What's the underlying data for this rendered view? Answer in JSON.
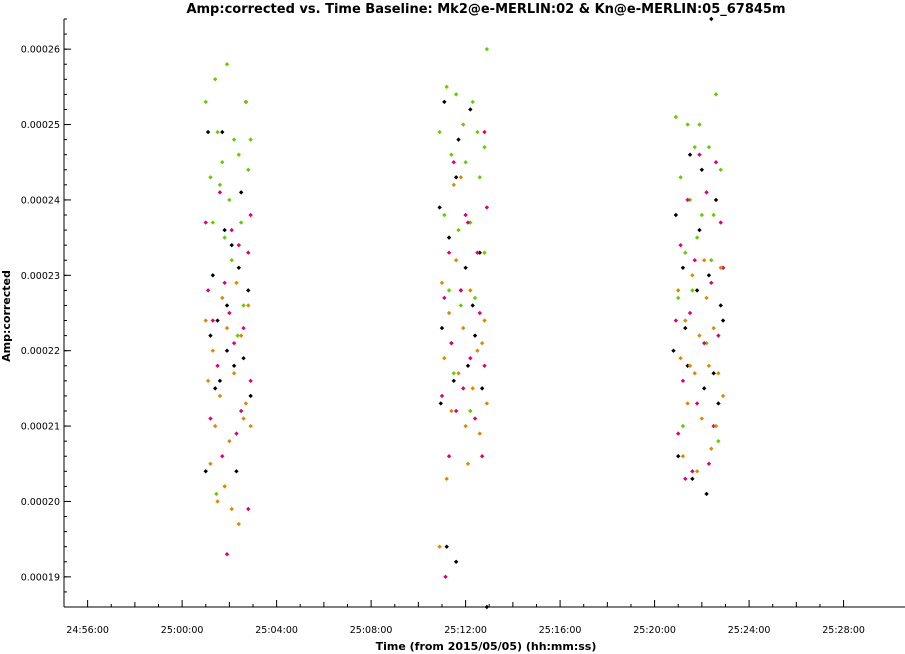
{
  "chart_data": {
    "type": "scatter",
    "title": "Amp:corrected vs. Time Baseline: Mk2@e-MERLIN:02 & Kn@e-MERLIN:05_67845m",
    "xlabel": "Time (from 2015/05/05) (hh:mm:ss)",
    "ylabel": "Amp:corrected",
    "x_unit": "minutes",
    "xlim": [
      1495.0,
      1530.6
    ],
    "ylim": [
      0.000186,
      0.000264
    ],
    "x_ticks": [
      {
        "value": 1496,
        "label": "24:56:00"
      },
      {
        "value": 1500,
        "label": "25:00:00"
      },
      {
        "value": 1504,
        "label": "25:04:00"
      },
      {
        "value": 1508,
        "label": "25:08:00"
      },
      {
        "value": 1512,
        "label": "25:12:00"
      },
      {
        "value": 1516,
        "label": "25:16:00"
      },
      {
        "value": 1520,
        "label": "25:20:00"
      },
      {
        "value": 1524,
        "label": "25:24:00"
      },
      {
        "value": 1528,
        "label": "25:28:00"
      }
    ],
    "y_ticks": [
      {
        "value": 0.00019,
        "label": "0.00019"
      },
      {
        "value": 0.0002,
        "label": "0.00020"
      },
      {
        "value": 0.00021,
        "label": "0.00021"
      },
      {
        "value": 0.00022,
        "label": "0.00022"
      },
      {
        "value": 0.00023,
        "label": "0.00023"
      },
      {
        "value": 0.00024,
        "label": "0.00024"
      },
      {
        "value": 0.00025,
        "label": "0.00025"
      },
      {
        "value": 0.00026,
        "label": "0.00026"
      }
    ],
    "grid": false,
    "series": [
      {
        "color": "#000000",
        "points": [
          [
            1501.1,
            0.000249
          ],
          [
            1501.8,
            0.000236
          ],
          [
            1502.1,
            0.000234
          ],
          [
            1502.7,
            0.000253
          ],
          [
            1502.5,
            0.000241
          ],
          [
            1501.3,
            0.00023
          ],
          [
            1501.5,
            0.000224
          ],
          [
            1501.9,
            0.000226
          ],
          [
            1502.4,
            0.000231
          ],
          [
            1502.8,
            0.000228
          ],
          [
            1501.2,
            0.000222
          ],
          [
            1501.6,
            0.000216
          ],
          [
            1502.2,
            0.000218
          ],
          [
            1502.9,
            0.000214
          ],
          [
            1501.0,
            0.000204
          ],
          [
            1502.3,
            0.000204
          ],
          [
            1501.7,
            0.000249
          ],
          [
            1502.6,
            0.000219
          ],
          [
            1501.4,
            0.000215
          ],
          [
            1501.9,
            0.00022
          ],
          [
            1510.9,
            0.000239
          ],
          [
            1511.1,
            0.000253
          ],
          [
            1511.6,
            0.000243
          ],
          [
            1512.2,
            0.000252
          ],
          [
            1511.3,
            0.000235
          ],
          [
            1512.6,
            0.000233
          ],
          [
            1511.0,
            0.000223
          ],
          [
            1511.8,
            0.000228
          ],
          [
            1512.4,
            0.000222
          ],
          [
            1511.5,
            0.000216
          ],
          [
            1512.1,
            0.000218
          ],
          [
            1512.7,
            0.000215
          ],
          [
            1511.2,
            0.000194
          ],
          [
            1511.6,
            0.000192
          ],
          [
            1512.9,
            0.000186
          ],
          [
            1511.7,
            0.000248
          ],
          [
            1512.3,
            0.000226
          ],
          [
            1510.95,
            0.000213
          ],
          [
            1512.0,
            0.000231
          ],
          [
            1511.4,
            0.000221
          ],
          [
            1520.9,
            0.000238
          ],
          [
            1521.5,
            0.000246
          ],
          [
            1522.0,
            0.000244
          ],
          [
            1522.6,
            0.00024
          ],
          [
            1521.2,
            0.000231
          ],
          [
            1521.8,
            0.000228
          ],
          [
            1522.3,
            0.00023
          ],
          [
            1522.9,
            0.000224
          ],
          [
            1520.8,
            0.00022
          ],
          [
            1521.4,
            0.000218
          ],
          [
            1522.1,
            0.000215
          ],
          [
            1522.7,
            0.000213
          ],
          [
            1521.0,
            0.000206
          ],
          [
            1521.6,
            0.000203
          ],
          [
            1522.2,
            0.000201
          ],
          [
            1522.4,
            0.000264
          ],
          [
            1521.3,
            0.000223
          ],
          [
            1522.8,
            0.000226
          ],
          [
            1521.9,
            0.000236
          ],
          [
            1522.5,
            0.000217
          ]
        ]
      },
      {
        "color": "#66cc00",
        "points": [
          [
            1501.0,
            0.000253
          ],
          [
            1501.4,
            0.000256
          ],
          [
            1501.9,
            0.000258
          ],
          [
            1502.7,
            0.000253
          ],
          [
            1501.5,
            0.000249
          ],
          [
            1502.2,
            0.000248
          ],
          [
            1502.9,
            0.000248
          ],
          [
            1501.7,
            0.000245
          ],
          [
            1502.4,
            0.000246
          ],
          [
            1501.2,
            0.000243
          ],
          [
            1502.0,
            0.00024
          ],
          [
            1502.8,
            0.000244
          ],
          [
            1501.6,
            0.000242
          ],
          [
            1501.3,
            0.000237
          ],
          [
            1502.5,
            0.000237
          ],
          [
            1501.8,
            0.000235
          ],
          [
            1502.1,
            0.000232
          ],
          [
            1502.6,
            0.000226
          ],
          [
            1501.45,
            0.000201
          ],
          [
            1502.35,
            0.000222
          ],
          [
            1511.2,
            0.000255
          ],
          [
            1511.6,
            0.000254
          ],
          [
            1512.3,
            0.000253
          ],
          [
            1512.9,
            0.00026
          ],
          [
            1510.9,
            0.000249
          ],
          [
            1511.9,
            0.00025
          ],
          [
            1512.5,
            0.000249
          ],
          [
            1512.8,
            0.000247
          ],
          [
            1511.4,
            0.000246
          ],
          [
            1512.0,
            0.000245
          ],
          [
            1512.6,
            0.000243
          ],
          [
            1511.1,
            0.000238
          ],
          [
            1511.7,
            0.000236
          ],
          [
            1512.2,
            0.000237
          ],
          [
            1512.8,
            0.000233
          ],
          [
            1511.3,
            0.000228
          ],
          [
            1511.8,
            0.000226
          ],
          [
            1512.4,
            0.000227
          ],
          [
            1511.5,
            0.000217
          ],
          [
            1512.2,
            0.000212
          ],
          [
            1520.9,
            0.000251
          ],
          [
            1521.4,
            0.00025
          ],
          [
            1521.9,
            0.00025
          ],
          [
            1522.6,
            0.000254
          ],
          [
            1521.1,
            0.000243
          ],
          [
            1521.7,
            0.000247
          ],
          [
            1522.3,
            0.000247
          ],
          [
            1522.8,
            0.000244
          ],
          [
            1521.5,
            0.00024
          ],
          [
            1522.0,
            0.000238
          ],
          [
            1522.5,
            0.000238
          ],
          [
            1521.3,
            0.000233
          ],
          [
            1521.8,
            0.000235
          ],
          [
            1522.4,
            0.000232
          ],
          [
            1522.9,
            0.000231
          ],
          [
            1521.0,
            0.000227
          ],
          [
            1521.6,
            0.000228
          ],
          [
            1522.2,
            0.000221
          ],
          [
            1521.2,
            0.00021
          ],
          [
            1522.7,
            0.000208
          ]
        ]
      },
      {
        "color": "#dd0077",
        "points": [
          [
            1502.9,
            0.000238
          ],
          [
            1501.6,
            0.000241
          ],
          [
            1501.1,
            0.000228
          ],
          [
            1501.8,
            0.000229
          ],
          [
            1502.4,
            0.000234
          ],
          [
            1502.8,
            0.000233
          ],
          [
            1501.3,
            0.000224
          ],
          [
            1502.0,
            0.000225
          ],
          [
            1502.6,
            0.000223
          ],
          [
            1501.5,
            0.000218
          ],
          [
            1502.2,
            0.000221
          ],
          [
            1502.9,
            0.000216
          ],
          [
            1501.2,
            0.000211
          ],
          [
            1502.5,
            0.000212
          ],
          [
            1501.7,
            0.000206
          ],
          [
            1502.3,
            0.000209
          ],
          [
            1501.9,
            0.000193
          ],
          [
            1502.8,
            0.000199
          ],
          [
            1501.0,
            0.000237
          ],
          [
            1502.1,
            0.000236
          ],
          [
            1512.8,
            0.000249
          ],
          [
            1511.5,
            0.000245
          ],
          [
            1512.0,
            0.000238
          ],
          [
            1512.9,
            0.000239
          ],
          [
            1511.3,
            0.000233
          ],
          [
            1512.5,
            0.000233
          ],
          [
            1511.1,
            0.000227
          ],
          [
            1511.8,
            0.000228
          ],
          [
            1512.6,
            0.000225
          ],
          [
            1511.4,
            0.000221
          ],
          [
            1512.2,
            0.000219
          ],
          [
            1512.8,
            0.000218
          ],
          [
            1511.0,
            0.000214
          ],
          [
            1511.6,
            0.000212
          ],
          [
            1512.4,
            0.000211
          ],
          [
            1511.3,
            0.000206
          ],
          [
            1512.7,
            0.000206
          ],
          [
            1511.15,
            0.00019
          ],
          [
            1512.1,
            0.000237
          ],
          [
            1511.9,
            0.000215
          ],
          [
            1521.9,
            0.000246
          ],
          [
            1522.6,
            0.000245
          ],
          [
            1521.4,
            0.00024
          ],
          [
            1522.2,
            0.000241
          ],
          [
            1522.8,
            0.000237
          ],
          [
            1521.1,
            0.000234
          ],
          [
            1521.7,
            0.000232
          ],
          [
            1522.4,
            0.000229
          ],
          [
            1522.9,
            0.000231
          ],
          [
            1520.9,
            0.000224
          ],
          [
            1521.5,
            0.000225
          ],
          [
            1522.1,
            0.000221
          ],
          [
            1522.7,
            0.000222
          ],
          [
            1521.2,
            0.000216
          ],
          [
            1521.8,
            0.000213
          ],
          [
            1522.5,
            0.00021
          ],
          [
            1521.0,
            0.000209
          ],
          [
            1521.6,
            0.000204
          ],
          [
            1522.3,
            0.000205
          ],
          [
            1521.3,
            0.000203
          ]
        ]
      },
      {
        "color": "#dd8800",
        "points": [
          [
            1501.0,
            0.000224
          ],
          [
            1501.7,
            0.000227
          ],
          [
            1502.3,
            0.000229
          ],
          [
            1502.8,
            0.000226
          ],
          [
            1501.3,
            0.00022
          ],
          [
            1501.9,
            0.000223
          ],
          [
            1502.5,
            0.000222
          ],
          [
            1501.1,
            0.000216
          ],
          [
            1501.6,
            0.000214
          ],
          [
            1502.2,
            0.000217
          ],
          [
            1502.7,
            0.000213
          ],
          [
            1501.4,
            0.00021
          ],
          [
            1502.0,
            0.000208
          ],
          [
            1502.6,
            0.000211
          ],
          [
            1501.2,
            0.000205
          ],
          [
            1501.8,
            0.000202
          ],
          [
            1502.4,
            0.000197
          ],
          [
            1501.5,
            0.0002
          ],
          [
            1502.1,
            0.000199
          ],
          [
            1502.9,
            0.00021
          ],
          [
            1511.0,
            0.000229
          ],
          [
            1511.6,
            0.000232
          ],
          [
            1512.2,
            0.000228
          ],
          [
            1512.8,
            0.000224
          ],
          [
            1511.3,
            0.000225
          ],
          [
            1511.9,
            0.000223
          ],
          [
            1512.5,
            0.00022
          ],
          [
            1511.1,
            0.000219
          ],
          [
            1511.7,
            0.000217
          ],
          [
            1512.3,
            0.000215
          ],
          [
            1512.9,
            0.000213
          ],
          [
            1511.4,
            0.000212
          ],
          [
            1512.0,
            0.00021
          ],
          [
            1512.6,
            0.000209
          ],
          [
            1511.2,
            0.000203
          ],
          [
            1512.1,
            0.000205
          ],
          [
            1510.9,
            0.000194
          ],
          [
            1511.8,
            0.000243
          ],
          [
            1511.5,
            0.000242
          ],
          [
            1512.7,
            0.000221
          ],
          [
            1521.0,
            0.000228
          ],
          [
            1521.6,
            0.00023
          ],
          [
            1522.2,
            0.000227
          ],
          [
            1522.8,
            0.000231
          ],
          [
            1521.3,
            0.000224
          ],
          [
            1521.9,
            0.000222
          ],
          [
            1522.5,
            0.000223
          ],
          [
            1521.1,
            0.000219
          ],
          [
            1521.7,
            0.000217
          ],
          [
            1522.3,
            0.000218
          ],
          [
            1522.9,
            0.000214
          ],
          [
            1521.4,
            0.000213
          ],
          [
            1522.0,
            0.000211
          ],
          [
            1522.6,
            0.00021
          ],
          [
            1521.2,
            0.000206
          ],
          [
            1521.8,
            0.000204
          ],
          [
            1522.4,
            0.000207
          ],
          [
            1522.7,
            0.000217
          ],
          [
            1521.5,
            0.000218
          ],
          [
            1522.1,
            0.000232
          ]
        ]
      }
    ]
  }
}
